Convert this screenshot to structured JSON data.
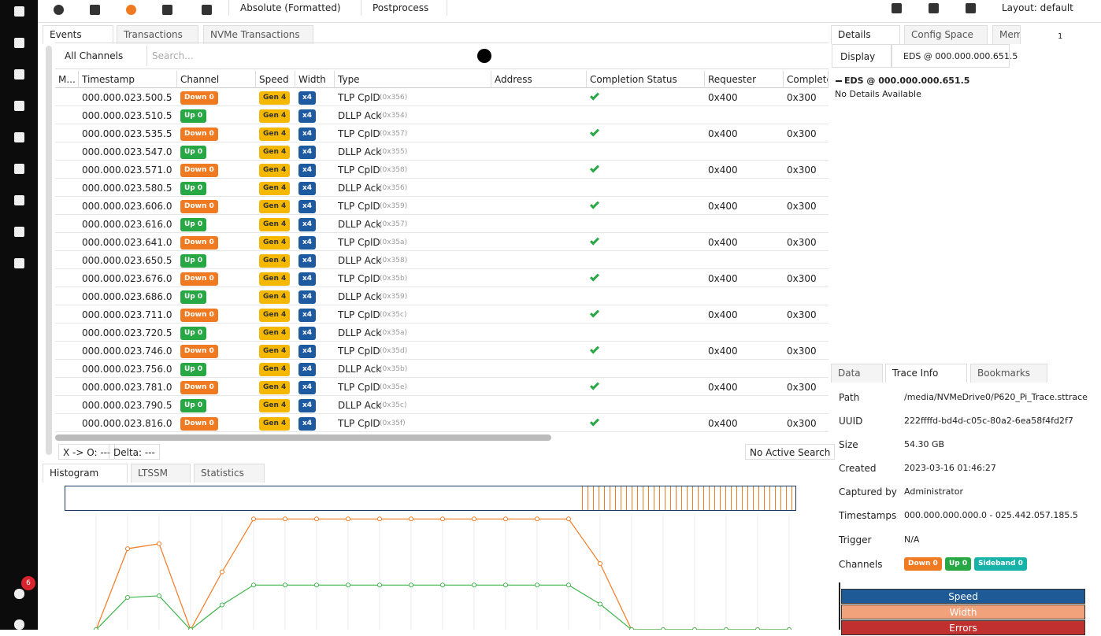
{
  "sidebar": {
    "notifications": "6"
  },
  "toolbar": {
    "time_format": "Absolute (Formatted)",
    "postprocess": "Postprocess",
    "layout": "Layout: default"
  },
  "events_panel": {
    "tabs": [
      "Events",
      "Transactions",
      "NVMe Transactions"
    ],
    "channel_filter": "All Channels",
    "search_placeholder": "Search...",
    "columns": [
      "M...",
      "Timestamp",
      "Channel",
      "Speed",
      "Width",
      "Type",
      "Address",
      "Completion Status",
      "Requester",
      "Complete"
    ],
    "rows": [
      {
        "timestamp": "000.000.023.500.5",
        "channel": "Down 0",
        "speed": "Gen 4",
        "width": "x4",
        "type": "TLP CplD",
        "code": "(0x356)",
        "requester": "0x400",
        "completer": "0x300"
      },
      {
        "timestamp": "000.000.023.510.5",
        "channel": "Up 0",
        "speed": "Gen 4",
        "width": "x4",
        "type": "DLLP Ack",
        "code": "(0x354)"
      },
      {
        "timestamp": "000.000.023.535.5",
        "channel": "Down 0",
        "speed": "Gen 4",
        "width": "x4",
        "type": "TLP CplD",
        "code": "(0x357)",
        "requester": "0x400",
        "completer": "0x300"
      },
      {
        "timestamp": "000.000.023.547.0",
        "channel": "Up 0",
        "speed": "Gen 4",
        "width": "x4",
        "type": "DLLP Ack",
        "code": "(0x355)"
      },
      {
        "timestamp": "000.000.023.571.0",
        "channel": "Down 0",
        "speed": "Gen 4",
        "width": "x4",
        "type": "TLP CplD",
        "code": "(0x358)",
        "requester": "0x400",
        "completer": "0x300"
      },
      {
        "timestamp": "000.000.023.580.5",
        "channel": "Up 0",
        "speed": "Gen 4",
        "width": "x4",
        "type": "DLLP Ack",
        "code": "(0x356)"
      },
      {
        "timestamp": "000.000.023.606.0",
        "channel": "Down 0",
        "speed": "Gen 4",
        "width": "x4",
        "type": "TLP CplD",
        "code": "(0x359)",
        "requester": "0x400",
        "completer": "0x300"
      },
      {
        "timestamp": "000.000.023.616.0",
        "channel": "Up 0",
        "speed": "Gen 4",
        "width": "x4",
        "type": "DLLP Ack",
        "code": "(0x357)"
      },
      {
        "timestamp": "000.000.023.641.0",
        "channel": "Down 0",
        "speed": "Gen 4",
        "width": "x4",
        "type": "TLP CplD",
        "code": "(0x35a)",
        "requester": "0x400",
        "completer": "0x300"
      },
      {
        "timestamp": "000.000.023.650.5",
        "channel": "Up 0",
        "speed": "Gen 4",
        "width": "x4",
        "type": "DLLP Ack",
        "code": "(0x358)"
      },
      {
        "timestamp": "000.000.023.676.0",
        "channel": "Down 0",
        "speed": "Gen 4",
        "width": "x4",
        "type": "TLP CplD",
        "code": "(0x35b)",
        "requester": "0x400",
        "completer": "0x300"
      },
      {
        "timestamp": "000.000.023.686.0",
        "channel": "Up 0",
        "speed": "Gen 4",
        "width": "x4",
        "type": "DLLP Ack",
        "code": "(0x359)"
      },
      {
        "timestamp": "000.000.023.711.0",
        "channel": "Down 0",
        "speed": "Gen 4",
        "width": "x4",
        "type": "TLP CplD",
        "code": "(0x35c)",
        "requester": "0x400",
        "completer": "0x300"
      },
      {
        "timestamp": "000.000.023.720.5",
        "channel": "Up 0",
        "speed": "Gen 4",
        "width": "x4",
        "type": "DLLP Ack",
        "code": "(0x35a)"
      },
      {
        "timestamp": "000.000.023.746.0",
        "channel": "Down 0",
        "speed": "Gen 4",
        "width": "x4",
        "type": "TLP CplD",
        "code": "(0x35d)",
        "requester": "0x400",
        "completer": "0x300"
      },
      {
        "timestamp": "000.000.023.756.0",
        "channel": "Up 0",
        "speed": "Gen 4",
        "width": "x4",
        "type": "DLLP Ack",
        "code": "(0x35b)"
      },
      {
        "timestamp": "000.000.023.781.0",
        "channel": "Down 0",
        "speed": "Gen 4",
        "width": "x4",
        "type": "TLP CplD",
        "code": "(0x35e)",
        "requester": "0x400",
        "completer": "0x300"
      },
      {
        "timestamp": "000.000.023.790.5",
        "channel": "Up 0",
        "speed": "Gen 4",
        "width": "x4",
        "type": "DLLP Ack",
        "code": "(0x35c)"
      },
      {
        "timestamp": "000.000.023.816.0",
        "channel": "Down 0",
        "speed": "Gen 4",
        "width": "x4",
        "type": "TLP CplD",
        "code": "(0x35f)",
        "requester": "0x400",
        "completer": "0x300"
      }
    ],
    "status": {
      "cursor": "X -> O: ---",
      "delta": "Delta: ---",
      "search": "No Active Search"
    }
  },
  "details_panel": {
    "tabs": [
      "Details",
      "Config Space",
      "Mem"
    ],
    "tab_count": "1",
    "display": "Display",
    "selection": "EDS @ 000.000.000.651.5",
    "heading": "EDS @ 000.000.000.651.5",
    "message": "No Details Available"
  },
  "histogram_panel": {
    "tabs": [
      "Histogram",
      "LTSSM",
      "Statistics"
    ],
    "chart": {
      "type": "line",
      "ylim": [
        0,
        160
      ],
      "series": [
        {
          "color": "#f07a22",
          "values": [
            0,
            98,
            104,
            0,
            70,
            134,
            134,
            134,
            134,
            134,
            134,
            134,
            134,
            134,
            134,
            134,
            80,
            0,
            0,
            0,
            0,
            0,
            0
          ]
        },
        {
          "color": "#3cb44b",
          "values": [
            0,
            39,
            41,
            0,
            30,
            54,
            54,
            54,
            54,
            54,
            54,
            54,
            54,
            54,
            54,
            54,
            31,
            0,
            0,
            0,
            0,
            0,
            0
          ]
        }
      ]
    }
  },
  "trace_panel": {
    "tabs": [
      "Data",
      "Trace Info",
      "Bookmarks"
    ],
    "info": [
      {
        "label": "Path",
        "value": "/media/NVMeDrive0/P620_Pi_Trace.sttrace"
      },
      {
        "label": "UUID",
        "value": "222ffffd-bd4d-c05c-80a2-6ea58f4fd2f7"
      },
      {
        "label": "Size",
        "value": "54.30 GB"
      },
      {
        "label": "Created",
        "value": "2023-03-16 01:46:27"
      },
      {
        "label": "Captured by",
        "value": "Administrator"
      },
      {
        "label": "Timestamps",
        "value": "000.000.000.000.0 - 025.442.057.185.5"
      },
      {
        "label": "Trigger",
        "value": "N/A"
      }
    ],
    "channels_label": "Channels",
    "channels": [
      {
        "name": "Down 0",
        "color": "#f07a22"
      },
      {
        "name": "Up 0",
        "color": "#28a745"
      },
      {
        "name": "Sideband 0",
        "color": "#17b3a8"
      }
    ],
    "legend": [
      {
        "name": "Speed",
        "color": "#1d5a96"
      },
      {
        "name": "Width",
        "color": "#f2a27a"
      },
      {
        "name": "Errors",
        "color": "#c0302e"
      }
    ]
  }
}
